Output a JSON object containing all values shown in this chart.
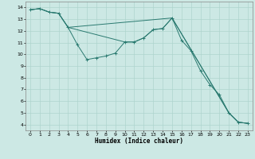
{
  "title": "",
  "xlabel": "Humidex (Indice chaleur)",
  "ylabel": "",
  "bg_color": "#cce8e4",
  "line_color": "#2a7a70",
  "grid_color": "#aed4ce",
  "xlim": [
    -0.5,
    23.5
  ],
  "ylim": [
    3.5,
    14.5
  ],
  "xticks": [
    0,
    1,
    2,
    3,
    4,
    5,
    6,
    7,
    8,
    9,
    10,
    11,
    12,
    13,
    14,
    15,
    16,
    17,
    18,
    19,
    20,
    21,
    22,
    23
  ],
  "yticks": [
    4,
    5,
    6,
    7,
    8,
    9,
    10,
    11,
    12,
    13,
    14
  ],
  "series": [
    {
      "x": [
        0,
        1,
        2,
        3,
        4,
        5,
        6,
        7,
        8,
        9,
        10,
        11,
        12,
        13,
        14,
        15,
        16,
        17,
        18,
        19,
        20,
        21,
        22,
        23
      ],
      "y": [
        13.8,
        13.9,
        13.6,
        13.5,
        12.3,
        10.8,
        9.55,
        9.7,
        9.85,
        10.1,
        11.05,
        11.05,
        11.4,
        12.1,
        12.2,
        13.1,
        11.2,
        10.3,
        8.6,
        7.4,
        6.55,
        5.0,
        4.2,
        4.1
      ],
      "has_markers": true
    },
    {
      "x": [
        0,
        1,
        2,
        3,
        4,
        10,
        11,
        12,
        13,
        14,
        15,
        21,
        22,
        23
      ],
      "y": [
        13.8,
        13.9,
        13.6,
        13.5,
        12.3,
        11.05,
        11.05,
        11.4,
        12.1,
        12.2,
        13.1,
        5.0,
        4.2,
        4.1
      ],
      "has_markers": false
    },
    {
      "x": [
        0,
        1,
        2,
        3,
        4,
        15,
        21,
        22,
        23
      ],
      "y": [
        13.8,
        13.9,
        13.6,
        13.5,
        12.3,
        13.1,
        5.0,
        4.2,
        4.1
      ],
      "has_markers": false
    }
  ]
}
